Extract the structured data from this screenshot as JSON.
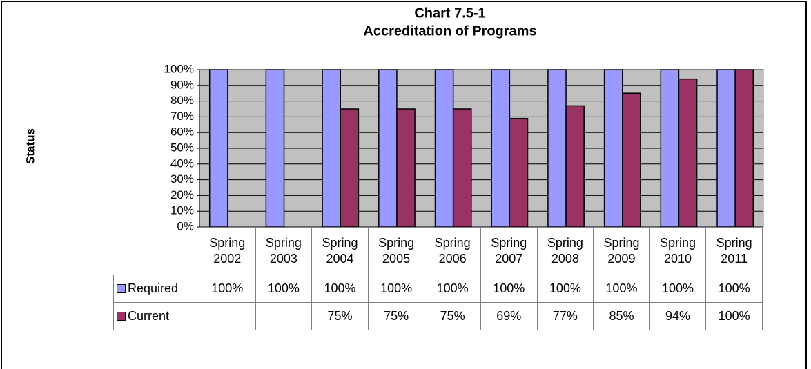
{
  "chart_data": {
    "type": "bar",
    "title": "Chart 7.5-1",
    "subtitle": "Accreditation of Programs",
    "y_label": "Status",
    "categories": [
      "Spring 2002",
      "Spring 2003",
      "Spring 2004",
      "Spring 2005",
      "Spring 2006",
      "Spring 2007",
      "Spring 2008",
      "Spring 2009",
      "Spring 2010",
      "Spring 2011"
    ],
    "series": [
      {
        "name": "Required",
        "color": "#9999ff",
        "values": [
          100,
          100,
          100,
          100,
          100,
          100,
          100,
          100,
          100,
          100
        ],
        "value_labels": [
          "100%",
          "100%",
          "100%",
          "100%",
          "100%",
          "100%",
          "100%",
          "100%",
          "100%",
          "100%"
        ]
      },
      {
        "name": "Current",
        "color": "#993366",
        "values": [
          null,
          null,
          75,
          75,
          75,
          69,
          77,
          85,
          94,
          100
        ],
        "value_labels": [
          null,
          null,
          "75%",
          "75%",
          "75%",
          "69%",
          "77%",
          "85%",
          "94%",
          "100%"
        ]
      }
    ],
    "ylim": [
      0,
      100
    ],
    "yticks": [
      {
        "value": 0,
        "label": "0%"
      },
      {
        "value": 10,
        "label": "10%"
      },
      {
        "value": 20,
        "label": "20%"
      },
      {
        "value": 30,
        "label": "30%"
      },
      {
        "value": 40,
        "label": "40%"
      },
      {
        "value": 50,
        "label": "50%"
      },
      {
        "value": 60,
        "label": "60%"
      },
      {
        "value": 70,
        "label": "70%"
      },
      {
        "value": 80,
        "label": "80%"
      },
      {
        "value": 90,
        "label": "90%"
      },
      {
        "value": 100,
        "label": "100%"
      }
    ],
    "grid": true,
    "plot_background": "#c0c0c0"
  }
}
